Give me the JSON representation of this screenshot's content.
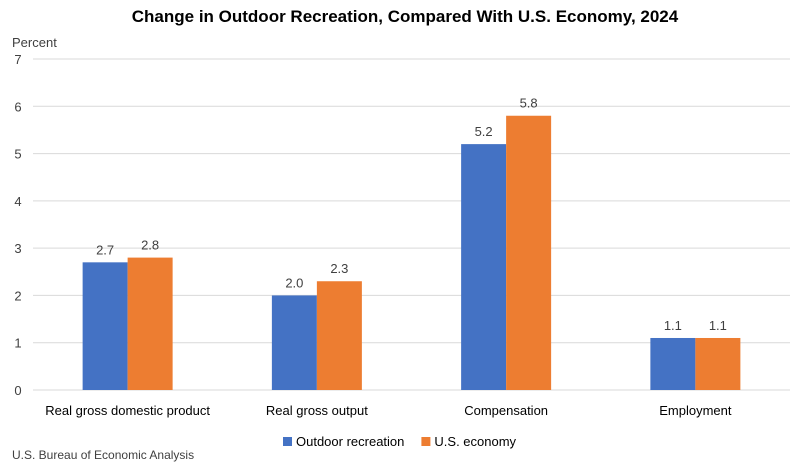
{
  "chart_data": {
    "type": "bar",
    "title": "Change in Outdoor Recreation, Compared With U.S. Economy, 2024",
    "ylabel": "Percent",
    "xlabel": "",
    "ylim": [
      0,
      7
    ],
    "yticks": [
      "0",
      "1",
      "2",
      "3",
      "4",
      "5",
      "6",
      "7"
    ],
    "grid": true,
    "legend_position": "bottom",
    "categories": [
      "Real gross domestic product",
      "Real gross output",
      "Compensation",
      "Employment"
    ],
    "series": [
      {
        "name": "Outdoor recreation",
        "color": "#4472C4",
        "values": [
          2.7,
          2.0,
          5.2,
          1.1
        ],
        "labels": [
          "2.7",
          "2.0",
          "5.2",
          "1.1"
        ]
      },
      {
        "name": "U.S. economy",
        "color": "#ED7D31",
        "values": [
          2.8,
          2.3,
          5.8,
          1.1
        ],
        "labels": [
          "2.8",
          "2.3",
          "5.8",
          "1.1"
        ]
      }
    ],
    "source": "U.S. Bureau of Economic Analysis"
  }
}
